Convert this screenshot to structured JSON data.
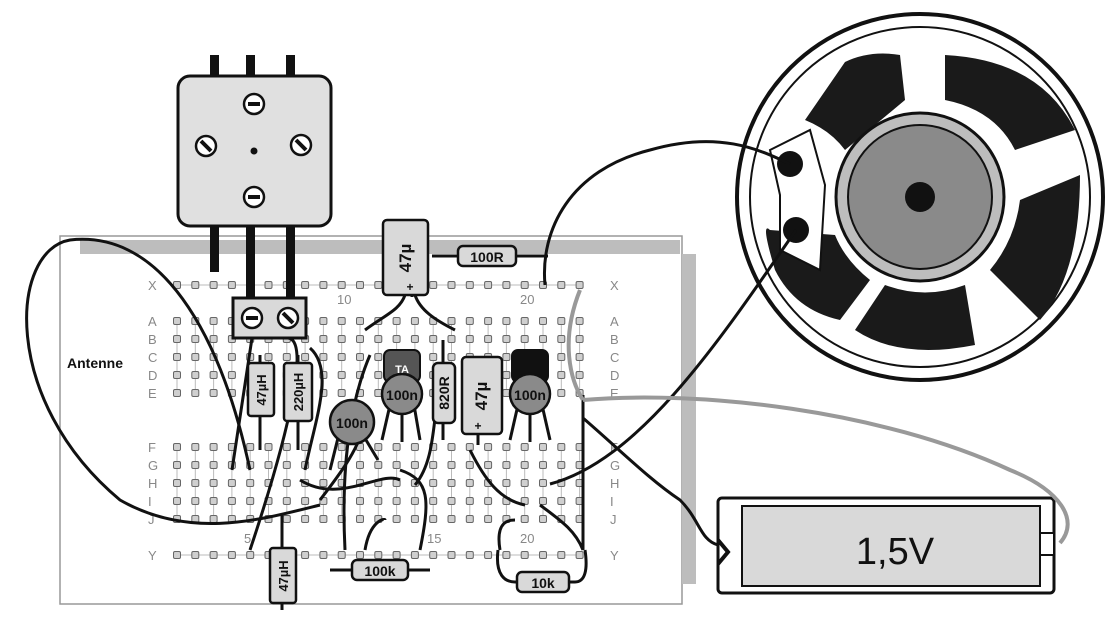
{
  "antenna_label": "Antenne",
  "battery_label": "1,5V",
  "rows_left": [
    "X",
    "A",
    "B",
    "C",
    "D",
    "E",
    "F",
    "G",
    "H",
    "I",
    "J",
    "Y"
  ],
  "rows_right": [
    "X",
    "A",
    "B",
    "C",
    "D",
    "E",
    "F",
    "G",
    "H",
    "I",
    "J",
    "Y"
  ],
  "column_numbers": [
    "5",
    "10",
    "15",
    "20"
  ],
  "components": {
    "cap_47u_top": "47µ",
    "res_100r_top": "100R",
    "ind_47uh_left": "47µH",
    "ind_220uh": "220µH",
    "cap_100n_ceramic": "100n",
    "transistor_1": "100n",
    "res_820r": "820R",
    "cap_47u_mid": "47µ",
    "transistor_2": "100n",
    "res_100k": "100k",
    "res_10k": "10k",
    "ind_47uh_bottom": "47µH",
    "polarity_plus": "+",
    "transistor_mark": "TA"
  },
  "colors": {
    "ink": "#111111",
    "component_fill": "#d9d9d9",
    "board_border": "#aaaaaa",
    "speaker_dark": "#1a1a1a",
    "speaker_grey": "#8a8a8a"
  }
}
